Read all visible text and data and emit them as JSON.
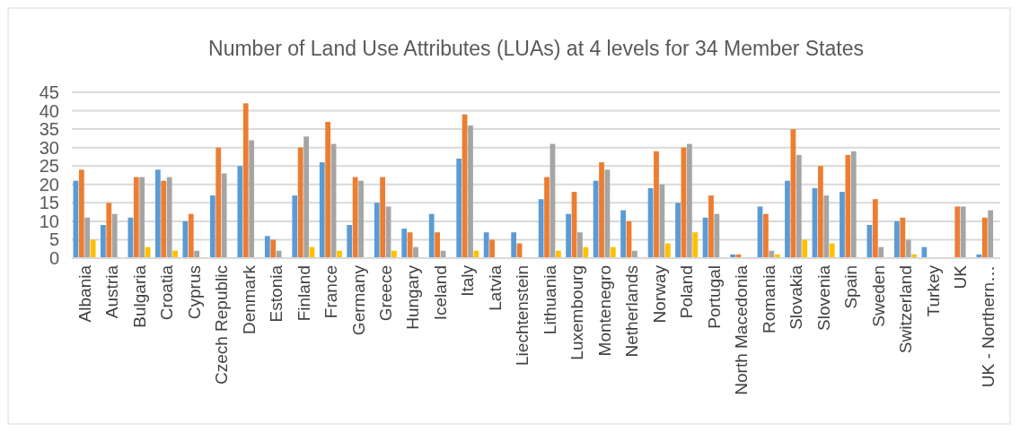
{
  "chart_data": {
    "type": "bar",
    "title": "Number of Land Use Attributes (LUAs) at 4 levels for 34 Member States",
    "categories": [
      "Albania",
      "Austria",
      "Bulgaria",
      "Croatia",
      "Cyprus",
      "Czech Republic",
      "Denmark",
      "Estonia",
      "Finland",
      "France",
      "Germany",
      "Greece",
      "Hungary",
      "Iceland",
      "Italy",
      "Latvia",
      "Liechtenstein",
      "Lithuania",
      "Luxembourg",
      "Montenegro",
      "Netherlands",
      "Norway",
      "Poland",
      "Portugal",
      "North Macedonia",
      "Romania",
      "Slovakia",
      "Slovenia",
      "Spain",
      "Sweden",
      "Switzerland",
      "Turkey",
      "UK",
      "UK - Northern…"
    ],
    "series": [
      {
        "color": "#5b9bd5",
        "values": [
          21,
          9,
          11,
          24,
          10,
          17,
          25,
          6,
          17,
          26,
          9,
          15,
          8,
          12,
          27,
          7,
          7,
          16,
          12,
          21,
          13,
          19,
          15,
          11,
          1,
          14,
          21,
          19,
          18,
          9,
          10,
          3,
          0,
          1
        ]
      },
      {
        "color": "#ed7d31",
        "values": [
          24,
          15,
          22,
          21,
          12,
          30,
          42,
          5,
          30,
          37,
          22,
          22,
          7,
          7,
          39,
          5,
          4,
          22,
          18,
          26,
          10,
          29,
          30,
          17,
          1,
          12,
          35,
          25,
          28,
          16,
          11,
          0,
          14,
          11
        ]
      },
      {
        "color": "#a5a5a5",
        "values": [
          11,
          12,
          22,
          22,
          2,
          23,
          32,
          2,
          33,
          31,
          21,
          14,
          3,
          2,
          36,
          0,
          0,
          31,
          7,
          24,
          2,
          20,
          31,
          12,
          0,
          2,
          28,
          17,
          29,
          3,
          5,
          0,
          14,
          13
        ]
      },
      {
        "color": "#ffc000",
        "values": [
          5,
          0,
          3,
          2,
          0,
          0,
          0,
          0,
          3,
          2,
          0,
          2,
          0,
          0,
          2,
          0,
          0,
          2,
          3,
          3,
          0,
          4,
          7,
          0,
          0,
          1,
          5,
          4,
          0,
          0,
          1,
          0,
          0,
          0
        ]
      }
    ],
    "ylim": [
      0,
      45
    ],
    "yticks": [
      0,
      5,
      10,
      15,
      20,
      25,
      30,
      35,
      40,
      45
    ],
    "grid": "y"
  }
}
